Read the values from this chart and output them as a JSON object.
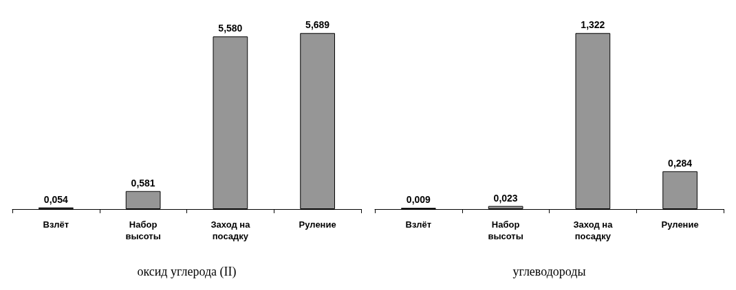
{
  "chart_data": [
    {
      "type": "bar",
      "title": "оксид углерода (II)",
      "categories": [
        "Взлёт",
        "Набор высоты",
        "Заход на посадку",
        "Руление"
      ],
      "values": [
        0.054,
        0.581,
        5.58,
        5.689
      ],
      "value_labels": [
        "0,054",
        "0,581",
        "5,580",
        "5,689"
      ],
      "color": "#969696"
    },
    {
      "type": "bar",
      "title": "углеводороды",
      "categories": [
        "Взлёт",
        "Набор высоты",
        "Заход на посадку",
        "Руление"
      ],
      "values": [
        0.009,
        0.023,
        1.322,
        0.284
      ],
      "value_labels": [
        "0,009",
        "0,023",
        "1,322",
        "0,284"
      ],
      "color": "#969696"
    }
  ]
}
